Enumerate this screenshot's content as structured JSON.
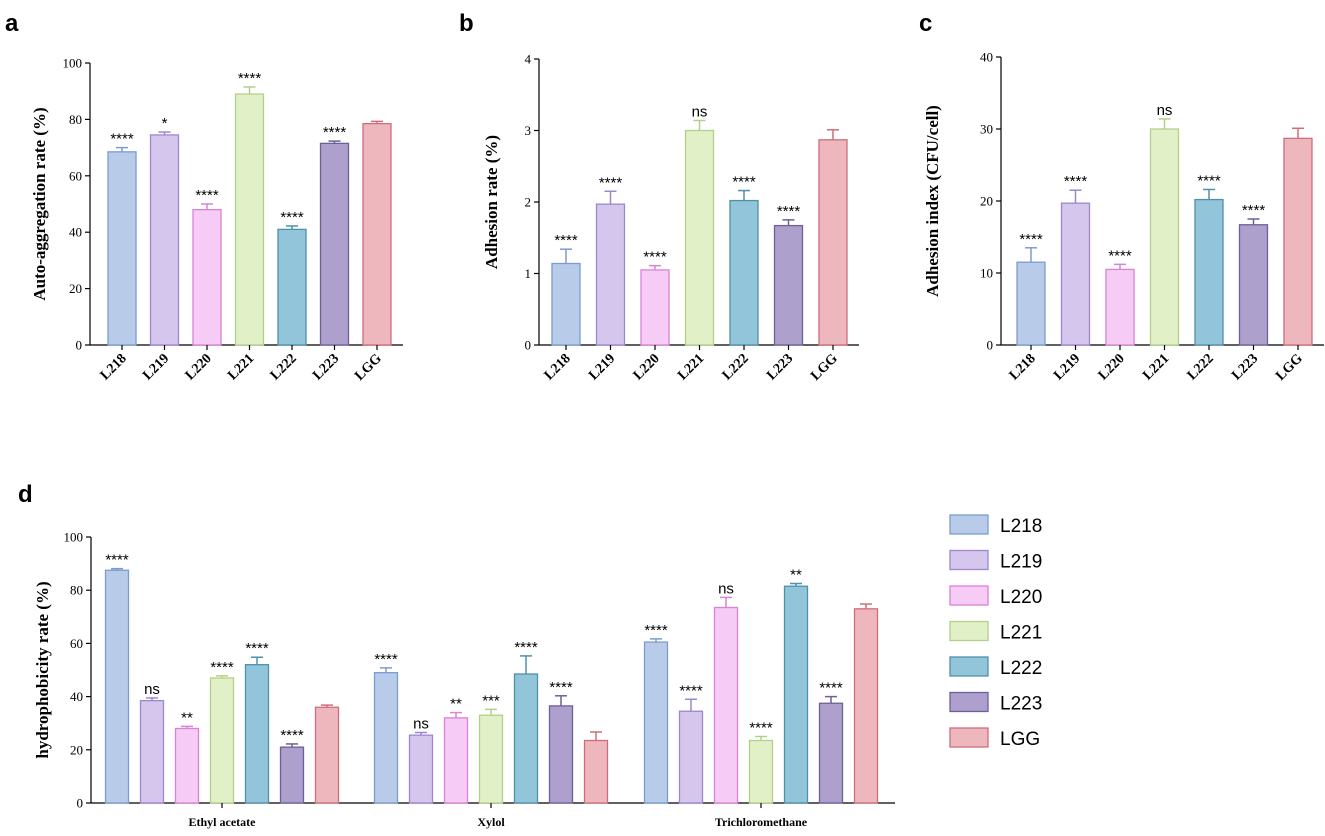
{
  "panel_letters": {
    "a": "a",
    "b": "b",
    "c": "c",
    "d": "d"
  },
  "colors": {
    "L218": {
      "fill": "#b8cbe8",
      "stroke": "#7d9bd0"
    },
    "L219": {
      "fill": "#d4c6ec",
      "stroke": "#9e86cf"
    },
    "L220": {
      "fill": "#f6cbf5",
      "stroke": "#d983d6"
    },
    "L221": {
      "fill": "#e2f0c7",
      "stroke": "#b3d08a"
    },
    "L222": {
      "fill": "#92c5d9",
      "stroke": "#4f90aa"
    },
    "L223": {
      "fill": "#aea0cc",
      "stroke": "#6f5f98"
    },
    "LGG": {
      "fill": "#eeb6bd",
      "stroke": "#cf6e7b"
    }
  },
  "legend": [
    "L218",
    "L219",
    "L220",
    "L221",
    "L222",
    "L223",
    "LGG"
  ],
  "chart_data": [
    {
      "id": "a",
      "type": "bar",
      "ylabel": "Auto-aggregation rate (%)",
      "ylim": [
        0,
        100
      ],
      "yticks": [
        0,
        20,
        40,
        60,
        80,
        100
      ],
      "categories": [
        "L218",
        "L219",
        "L220",
        "L221",
        "L222",
        "L223",
        "LGG"
      ],
      "values": [
        68.5,
        74.5,
        48.0,
        89.0,
        41.0,
        71.5,
        78.5
      ],
      "errors": [
        1.5,
        1.0,
        2.0,
        2.5,
        1.2,
        0.8,
        0.8
      ],
      "significance": [
        "****",
        "*",
        "****",
        "****",
        "****",
        "****",
        ""
      ]
    },
    {
      "id": "b",
      "type": "bar",
      "ylabel": "Adhesion rate (%)",
      "ylim": [
        0,
        4
      ],
      "yticks": [
        0,
        1,
        2,
        3,
        4
      ],
      "categories": [
        "L218",
        "L219",
        "L220",
        "L221",
        "L222",
        "L223",
        "LGG"
      ],
      "values": [
        1.14,
        1.97,
        1.05,
        3.0,
        2.02,
        1.67,
        2.87
      ],
      "errors": [
        0.2,
        0.18,
        0.06,
        0.14,
        0.14,
        0.08,
        0.14
      ],
      "significance": [
        "****",
        "****",
        "****",
        "ns",
        "****",
        "****",
        ""
      ]
    },
    {
      "id": "c",
      "type": "bar",
      "ylabel": "Adhesion index (CFU/cell)",
      "ylim": [
        0,
        40
      ],
      "yticks": [
        0,
        10,
        20,
        30,
        40
      ],
      "categories": [
        "L218",
        "L219",
        "L220",
        "L221",
        "L222",
        "L223",
        "LGG"
      ],
      "values": [
        11.5,
        19.7,
        10.5,
        30.0,
        20.2,
        16.7,
        28.7
      ],
      "errors": [
        2.0,
        1.8,
        0.7,
        1.4,
        1.4,
        0.8,
        1.4
      ],
      "significance": [
        "****",
        "****",
        "****",
        "ns",
        "****",
        "****",
        ""
      ]
    },
    {
      "id": "d",
      "type": "bar",
      "ylabel": "hydrophobicity rate (%)",
      "ylim": [
        0,
        100
      ],
      "yticks": [
        0,
        20,
        40,
        60,
        80,
        100
      ],
      "categories": [
        "Ethyl acetate",
        "Xylol",
        "Trichloromethane"
      ],
      "series": [
        {
          "name": "L218",
          "values": [
            87.5,
            49.0,
            60.5
          ],
          "errors": [
            0.6,
            1.8,
            1.2
          ],
          "significance": [
            "****",
            "****",
            "****"
          ]
        },
        {
          "name": "L219",
          "values": [
            38.5,
            25.5,
            34.5
          ],
          "errors": [
            1.0,
            1.0,
            4.5
          ],
          "significance": [
            "ns",
            "ns",
            "****"
          ]
        },
        {
          "name": "L220",
          "values": [
            28.0,
            32.0,
            73.5
          ],
          "errors": [
            0.8,
            2.0,
            3.8
          ],
          "significance": [
            "**",
            "**",
            "ns"
          ]
        },
        {
          "name": "L221",
          "values": [
            47.0,
            33.0,
            23.5
          ],
          "errors": [
            0.8,
            2.2,
            1.5
          ],
          "significance": [
            "****",
            "***",
            "****"
          ]
        },
        {
          "name": "L222",
          "values": [
            52.0,
            48.5,
            81.5
          ],
          "errors": [
            2.8,
            6.8,
            1.0
          ],
          "significance": [
            "****",
            "****",
            "**"
          ]
        },
        {
          "name": "L223",
          "values": [
            21.0,
            36.5,
            37.5
          ],
          "errors": [
            1.2,
            3.8,
            2.5
          ],
          "significance": [
            "****",
            "****",
            "****"
          ]
        },
        {
          "name": "LGG",
          "values": [
            36.0,
            23.5,
            73.0
          ],
          "errors": [
            0.8,
            3.2,
            1.8
          ],
          "significance": [
            "",
            "",
            ""
          ]
        }
      ]
    }
  ]
}
